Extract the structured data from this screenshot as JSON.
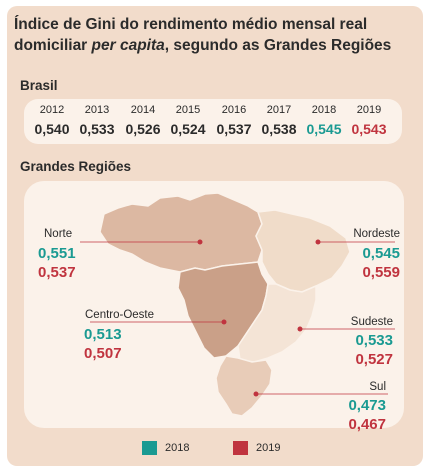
{
  "title_line1": "Índice de Gini do rendimento médio mensal real",
  "title_line2_prefix": "domiciliar ",
  "title_line2_italic": "per capita",
  "title_line2_suffix": ", segundo as Grandes Regiões",
  "brasil": {
    "label": "Brasil",
    "years": [
      "2012",
      "2013",
      "2014",
      "2015",
      "2016",
      "2017",
      "2018",
      "2019"
    ],
    "values": [
      "0,540",
      "0,533",
      "0,526",
      "0,524",
      "0,537",
      "0,538",
      "0,545",
      "0,543"
    ]
  },
  "regions_label": "Grandes Regiões",
  "regions": {
    "norte": {
      "name": "Norte",
      "v2018": "0,551",
      "v2019": "0,537"
    },
    "nordeste": {
      "name": "Nordeste",
      "v2018": "0,545",
      "v2019": "0,559"
    },
    "centro_oeste": {
      "name": "Centro-Oeste",
      "v2018": "0,513",
      "v2019": "0,507"
    },
    "sudeste": {
      "name": "Sudeste",
      "v2018": "0,533",
      "v2019": "0,527"
    },
    "sul": {
      "name": "Sul",
      "v2018": "0,473",
      "v2019": "0,467"
    }
  },
  "legend": [
    {
      "label": "2018",
      "color": "#1a9a92"
    },
    {
      "label": "2019",
      "color": "#c0343f"
    }
  ],
  "colors": {
    "teal_2018": "#1a9a92",
    "red_2019": "#c0343f",
    "card_bg": "#f2dccb",
    "panel_bg": "#fbf2ea",
    "map_norte": "#dcb8a2",
    "map_centro_oeste": "#caa088",
    "map_nordeste": "#f0dcc9",
    "map_sudeste": "#f4e4d6",
    "map_sul": "#e8ccb8"
  }
}
